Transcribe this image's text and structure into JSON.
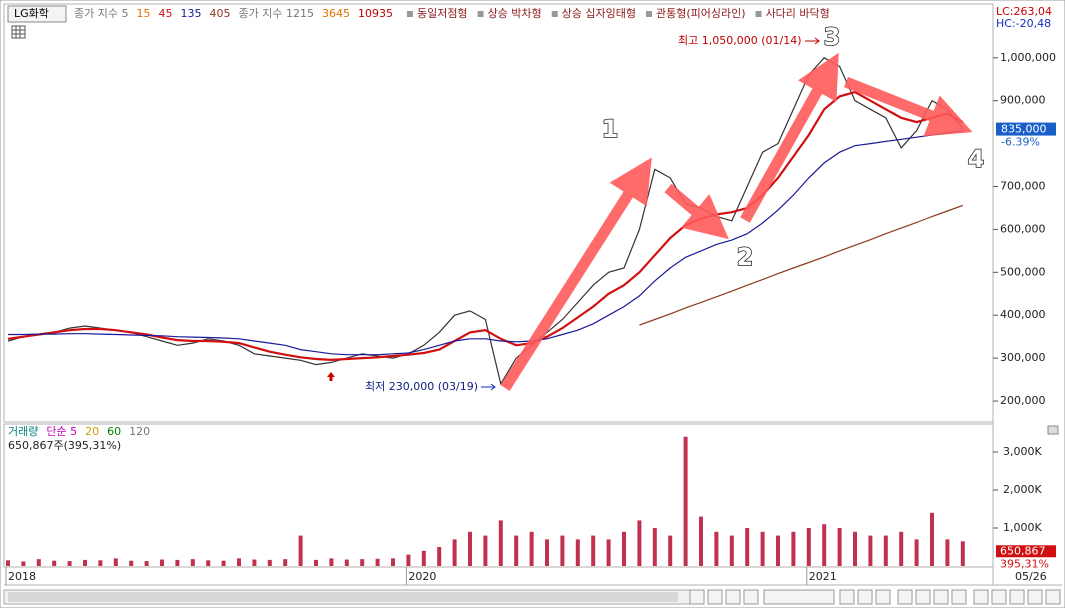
{
  "chart_data": [
    {
      "type": "line",
      "stock": "LG화학",
      "categories": [
        "2018",
        null,
        null,
        null,
        null,
        null,
        null,
        null,
        null,
        null,
        null,
        null,
        null,
        null,
        null,
        null,
        null,
        null,
        null,
        null,
        null,
        null,
        null,
        null,
        null,
        null,
        "2020",
        null,
        null,
        null,
        null,
        null,
        null,
        null,
        null,
        null,
        null,
        null,
        null,
        null,
        null,
        null,
        null,
        null,
        null,
        null,
        null,
        null,
        null,
        null,
        null,
        null,
        "2021",
        null,
        null,
        null,
        null,
        null,
        null,
        null,
        null,
        null,
        "05/26"
      ],
      "series": [
        {
          "name": "종가 지수 5",
          "color": "#333333",
          "values": [
            340000,
            350000,
            355000,
            360000,
            370000,
            375000,
            370000,
            365000,
            360000,
            350000,
            340000,
            330000,
            335000,
            345000,
            340000,
            330000,
            310000,
            305000,
            300000,
            295000,
            285000,
            290000,
            300000,
            310000,
            305000,
            300000,
            310000,
            330000,
            360000,
            400000,
            410000,
            390000,
            240000,
            300000,
            330000,
            360000,
            390000,
            430000,
            470000,
            500000,
            510000,
            600000,
            740000,
            720000,
            660000,
            650000,
            630000,
            620000,
            700000,
            780000,
            800000,
            880000,
            960000,
            1000000,
            980000,
            900000,
            880000,
            860000,
            790000,
            830000,
            900000,
            880000,
            835000
          ]
        },
        {
          "name": "45",
          "color": "#d01010",
          "values": [
            345000,
            350000,
            355000,
            360000,
            365000,
            368000,
            368000,
            365000,
            360000,
            355000,
            348000,
            342000,
            340000,
            340000,
            338000,
            335000,
            325000,
            315000,
            308000,
            302000,
            298000,
            296000,
            298000,
            300000,
            302000,
            305000,
            308000,
            312000,
            320000,
            340000,
            360000,
            365000,
            345000,
            330000,
            335000,
            350000,
            370000,
            395000,
            420000,
            450000,
            470000,
            500000,
            540000,
            580000,
            610000,
            625000,
            635000,
            640000,
            650000,
            680000,
            720000,
            770000,
            820000,
            880000,
            910000,
            920000,
            900000,
            880000,
            860000,
            850000,
            860000,
            870000,
            850000
          ]
        },
        {
          "name": "135",
          "color": "#1a1a9a",
          "values": [
            355000,
            355000,
            356000,
            356000,
            357000,
            357000,
            356000,
            355000,
            354000,
            353000,
            352000,
            350000,
            349000,
            348000,
            347000,
            345000,
            340000,
            335000,
            330000,
            320000,
            315000,
            310000,
            308000,
            308000,
            308000,
            310000,
            312000,
            320000,
            330000,
            340000,
            345000,
            345000,
            340000,
            338000,
            340000,
            345000,
            355000,
            365000,
            380000,
            400000,
            420000,
            445000,
            480000,
            510000,
            535000,
            550000,
            565000,
            575000,
            590000,
            615000,
            645000,
            680000,
            720000,
            755000,
            780000,
            795000,
            800000,
            805000,
            810000,
            815000,
            820000,
            825000,
            830000
          ]
        },
        {
          "name": "405",
          "color": "#8b3a1a",
          "values": [
            null,
            null,
            null,
            null,
            null,
            null,
            null,
            null,
            null,
            null,
            null,
            null,
            null,
            null,
            null,
            null,
            null,
            null,
            null,
            null,
            null,
            null,
            null,
            null,
            null,
            null,
            null,
            null,
            null,
            null,
            null,
            null,
            null,
            null,
            null,
            null,
            null,
            null,
            null,
            null,
            null,
            377000,
            390000,
            403000,
            417000,
            430000,
            443000,
            456000,
            470000,
            483000,
            497000,
            510000,
            523000,
            536000,
            550000,
            563000,
            576000,
            590000,
            603000,
            616000,
            630000,
            643000,
            656000
          ]
        }
      ],
      "extra_legend": [
        {
          "text": "15",
          "color": "#e07000"
        },
        {
          "text": "종가 지수 1215",
          "color": "#777777"
        },
        {
          "text": "3645",
          "color": "#e07000"
        },
        {
          "text": "10935",
          "color": "#c00000"
        }
      ],
      "patterns": [
        "동일저점형",
        "상승 박차형",
        "상승 십자잉태형",
        "관통형(피어싱라인)",
        "사다리 바닥형"
      ],
      "ylim": [
        153500,
        1123000
      ],
      "yticks": [
        {
          "value": 200000,
          "label": "200,000"
        },
        {
          "value": 300000,
          "label": "300,000"
        },
        {
          "value": 400000,
          "label": "400,000"
        },
        {
          "value": 500000,
          "label": "500,000"
        },
        {
          "value": 600000,
          "label": "600,000"
        },
        {
          "value": 700000,
          "label": "700,000"
        },
        {
          "value": 900000,
          "label": "900,000"
        },
        {
          "value": 1000000,
          "label": "1,000,000"
        }
      ],
      "lc_label": "LC:263,04",
      "hc_label": "HC:-20,48",
      "high_label": "최고 1,050,000 (01/14)",
      "low_label": "최저 230,000 (03/19)",
      "wave_labels": [
        "1",
        "2",
        "3",
        "4"
      ],
      "current_value": 835000,
      "current_label": "835,000",
      "change_label": "-6.39%"
    },
    {
      "type": "bar",
      "title": "거래량",
      "legend": [
        {
          "text": "단순 5",
          "color": "#c000c0"
        },
        {
          "text": "20",
          "color": "#d0a000"
        },
        {
          "text": "60",
          "color": "#008000"
        },
        {
          "text": "120",
          "color": "#777777"
        }
      ],
      "info": "650,867주(395,31%)",
      "values": [
        150000,
        120000,
        180000,
        140000,
        130000,
        160000,
        150000,
        200000,
        140000,
        130000,
        170000,
        160000,
        180000,
        150000,
        140000,
        200000,
        170000,
        160000,
        180000,
        800000,
        160000,
        200000,
        170000,
        180000,
        190000,
        200000,
        300000,
        400000,
        500000,
        700000,
        900000,
        800000,
        1200000,
        800000,
        900000,
        700000,
        800000,
        700000,
        800000,
        700000,
        900000,
        1200000,
        1000000,
        800000,
        3400000,
        1300000,
        900000,
        800000,
        1000000,
        900000,
        800000,
        900000,
        1000000,
        1100000,
        1000000,
        900000,
        800000,
        800000,
        900000,
        700000,
        1400000,
        700000,
        650867
      ],
      "color": "#c0304f",
      "ylim": [
        0,
        3710000
      ],
      "yticks": [
        {
          "value": 1000000,
          "label": "1,000K"
        },
        {
          "value": 2000000,
          "label": "2,000K"
        },
        {
          "value": 3000000,
          "label": "3,000K"
        }
      ],
      "current_label": "650,867",
      "change_label": "395,31%"
    }
  ]
}
